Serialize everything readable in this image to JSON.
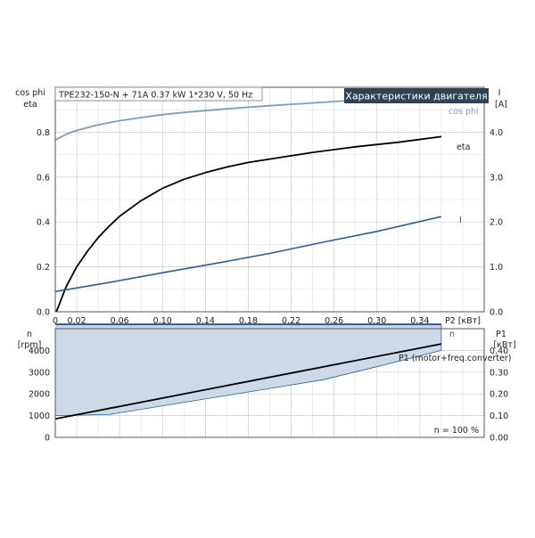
{
  "header": {
    "model_label": "TPE232-150-N + 71A  0.37 kW  1*230 V, 50 Hz",
    "section_title": "Характеристики двигателя"
  },
  "colors": {
    "cos_phi": "#7f9fb8",
    "eta": "#000000",
    "current": "#2a5f92",
    "n_band_fill": "#cdd9e6",
    "n_band_edge": "#2a5f92",
    "p1": "#000000",
    "title_box_bg": "#2f4356"
  },
  "chart_data": [
    {
      "type": "line",
      "x_label": "P2 [кВт]",
      "xlim": [
        0,
        0.4
      ],
      "x_ticks": [
        "0",
        "0,02",
        "0,06",
        "0,10",
        "0,14",
        "0,18",
        "0,22",
        "0,26",
        "0,30",
        "0,34"
      ],
      "x_tick_values": [
        0,
        0.02,
        0.06,
        0.1,
        0.14,
        0.18,
        0.22,
        0.26,
        0.3,
        0.34
      ],
      "y_left_label": [
        "cos phi",
        "eta"
      ],
      "ylim_left": [
        0,
        1.0
      ],
      "y_left_ticks": [
        "0.0",
        "0.2",
        "0.4",
        "0.6",
        "0.8"
      ],
      "y_left_tick_values": [
        0,
        0.2,
        0.4,
        0.6,
        0.8
      ],
      "y_right_label": [
        "I",
        "[A]"
      ],
      "ylim_right": [
        0,
        5.0
      ],
      "y_right_ticks": [
        "0.0",
        "1.0",
        "2.0",
        "3.0",
        "4.0"
      ],
      "y_right_tick_values": [
        0,
        1,
        2,
        3,
        4
      ],
      "grid": true,
      "series": [
        {
          "name": "cos phi",
          "axis": "left",
          "color_key": "cos_phi",
          "x": [
            0,
            0.01,
            0.02,
            0.04,
            0.06,
            0.08,
            0.1,
            0.12,
            0.14,
            0.16,
            0.18,
            0.2,
            0.24,
            0.28,
            0.32,
            0.36
          ],
          "y": [
            0.765,
            0.79,
            0.808,
            0.833,
            0.851,
            0.865,
            0.878,
            0.888,
            0.896,
            0.904,
            0.911,
            0.918,
            0.93,
            0.943,
            0.952,
            0.96
          ]
        },
        {
          "name": "eta",
          "axis": "left",
          "color_key": "eta",
          "x": [
            0.001,
            0.01,
            0.02,
            0.03,
            0.04,
            0.05,
            0.06,
            0.08,
            0.1,
            0.12,
            0.14,
            0.16,
            0.18,
            0.2,
            0.24,
            0.28,
            0.32,
            0.36
          ],
          "y": [
            0.0,
            0.11,
            0.2,
            0.27,
            0.33,
            0.38,
            0.425,
            0.495,
            0.55,
            0.59,
            0.62,
            0.645,
            0.665,
            0.68,
            0.71,
            0.735,
            0.755,
            0.78
          ]
        },
        {
          "name": "I",
          "axis": "right",
          "color_key": "current",
          "x": [
            0,
            0.05,
            0.1,
            0.15,
            0.2,
            0.25,
            0.3,
            0.36
          ],
          "y": [
            0.45,
            0.65,
            0.87,
            1.08,
            1.3,
            1.55,
            1.79,
            2.12
          ]
        }
      ]
    },
    {
      "type": "area",
      "xlim": [
        0,
        0.4
      ],
      "y_left_label": [
        "n",
        "[rpm]"
      ],
      "ylim_left": [
        0,
        5000
      ],
      "y_left_ticks": [
        "0",
        "1000",
        "2000",
        "3000",
        "4000"
      ],
      "y_left_tick_values": [
        0,
        1000,
        2000,
        3000,
        4000
      ],
      "y_right_label": [
        "P1",
        "[кВт]"
      ],
      "ylim_right": [
        0,
        0.5
      ],
      "y_right_ticks": [
        "0.00",
        "0.10",
        "0.20",
        "0.30",
        "0.40"
      ],
      "y_right_tick_values": [
        0,
        0.1,
        0.2,
        0.3,
        0.4
      ],
      "grid": true,
      "annotation": "n = 100 %",
      "series": [
        {
          "name": "n",
          "axis": "left",
          "color_key": "n_band_edge",
          "x": [
            0,
            0.36
          ],
          "y": [
            5200,
            5200
          ]
        },
        {
          "name": "n_lower",
          "axis": "left",
          "color_key": "n_band_edge",
          "x": [
            0,
            0.05,
            0.1,
            0.15,
            0.2,
            0.25,
            0.3,
            0.36
          ],
          "y": [
            1000,
            1050,
            1450,
            1850,
            2250,
            2650,
            3250,
            4000
          ]
        },
        {
          "name": "P1 (motor+freq.converter)",
          "axis": "right",
          "color_key": "p1",
          "x": [
            0,
            0.36
          ],
          "y": [
            0.085,
            0.43
          ]
        }
      ]
    }
  ]
}
